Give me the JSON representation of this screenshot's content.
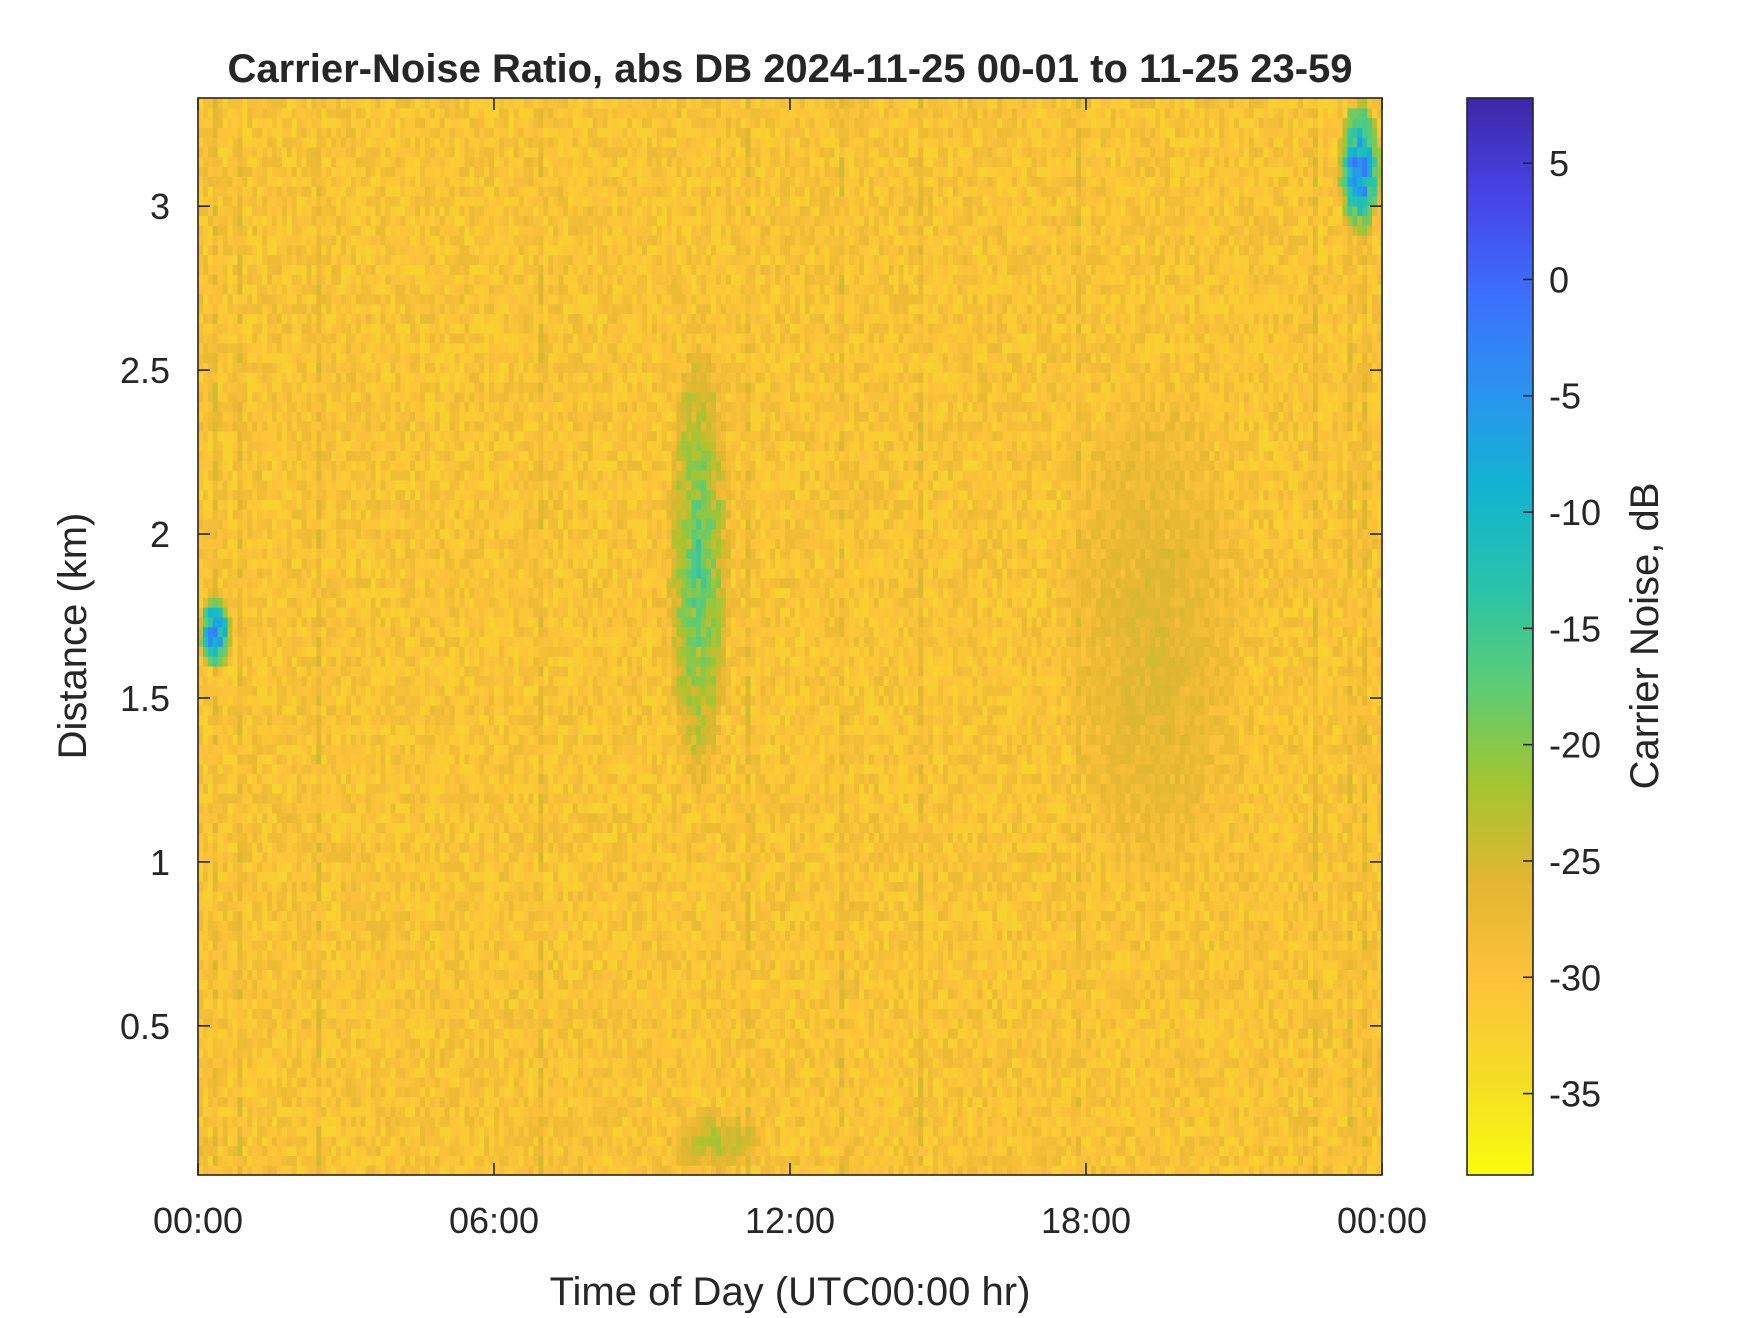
{
  "chart_data": {
    "type": "heatmap",
    "title": "Carrier-Noise Ratio, abs DB 2024-11-25 00-01 to 11-25 23-59",
    "xlabel": "Time of Day (UTC00:00 hr)",
    "ylabel": "Distance (km)",
    "colorbar_label": "Carrier Noise, dB",
    "x_ticks": [
      "00:00",
      "06:00",
      "12:00",
      "18:00",
      "00:00"
    ],
    "x_tick_hours": [
      0,
      6,
      12,
      18,
      24
    ],
    "xlim_hours": [
      0,
      24
    ],
    "y_ticks": [
      0.5,
      1,
      1.5,
      2,
      2.5,
      3
    ],
    "y_tick_labels": [
      "0.5",
      "1",
      "1.5",
      "2",
      "2.5",
      "3"
    ],
    "ylim_km": [
      0.045,
      3.33
    ],
    "colorbar_ticks": [
      5,
      0,
      -5,
      -10,
      -15,
      -20,
      -25,
      -30,
      -35
    ],
    "colorbar_tick_labels": [
      "5",
      "0",
      "-5",
      "-10",
      "-15",
      "-20",
      "-25",
      "-30",
      "-35"
    ],
    "clim_db": [
      -38.5,
      7.8
    ],
    "colormap": "parula",
    "colormap_stops": [
      "#3e26a8",
      "#4744e8",
      "#3d6ffd",
      "#2a94f0",
      "#12b4d0",
      "#29c3aa",
      "#5ccc75",
      "#a3c530",
      "#e3b631",
      "#fec23b",
      "#f4dc26",
      "#f9fb0e"
    ],
    "background_level_db": -30,
    "features": [
      {
        "desc": "strong return",
        "time_hr": [
          0.0,
          0.7
        ],
        "range_km": [
          1.58,
          1.82
        ],
        "value_db": 5
      },
      {
        "desc": "weak signal column",
        "time_hr": [
          9.5,
          10.8
        ],
        "range_km": [
          1.2,
          2.6
        ],
        "value_db": -13
      },
      {
        "desc": "near-surface layer",
        "time_hr": [
          9.5,
          11.5
        ],
        "range_km": [
          0.05,
          0.25
        ],
        "value_db": -20
      },
      {
        "desc": "descending layer",
        "time_hr": [
          17.5,
          21.2
        ],
        "range_km": [
          0.9,
          2.5
        ],
        "value_db": -24
      },
      {
        "desc": "cloud top returns",
        "time_hr": [
          23.1,
          24.0
        ],
        "range_km": [
          2.9,
          3.33
        ],
        "value_db": 5
      }
    ]
  }
}
